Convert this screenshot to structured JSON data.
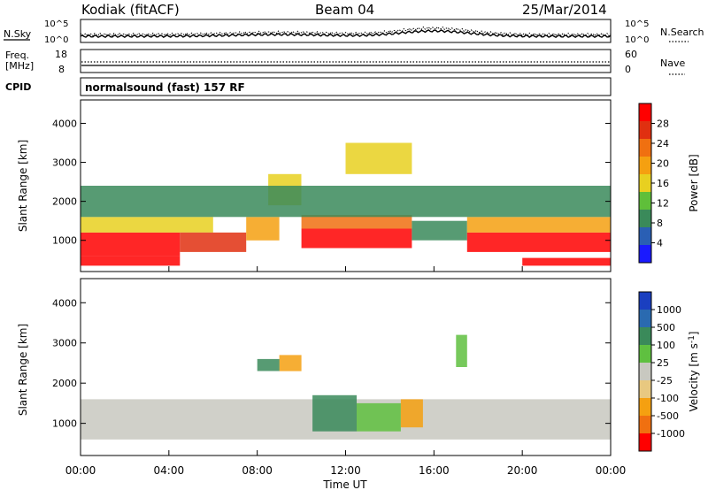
{
  "header": {
    "station": "Kodiak (fitACF)",
    "beam": "Beam 04",
    "date": "25/Mar/2014"
  },
  "strips": {
    "nsky_label": "N.Sky",
    "nsearch_label": "N.Search",
    "noise_ticks": [
      "10^5",
      "10^0"
    ],
    "freq_label_1": "Freq.",
    "freq_label_2": "[MHz]",
    "freq_ticks": [
      "18",
      "8"
    ],
    "nave_label": "Nave",
    "nave_ticks": [
      "60",
      "0"
    ],
    "cpid_label": "CPID",
    "cpid_value": "normalsound (fast) 157 RF"
  },
  "chart_data": [
    {
      "type": "heatmap",
      "name": "power",
      "ylabel": "Slant Range [km]",
      "xlabel": "",
      "ylim": [
        200,
        4600
      ],
      "yticks": [
        "1000",
        "2000",
        "3000",
        "4000"
      ],
      "colorbar": {
        "label": "Power [dB]",
        "ticks": [
          "4",
          "8",
          "12",
          "16",
          "20",
          "24",
          "28"
        ],
        "colors": [
          "#1a1aff",
          "#2a5fb4",
          "#3a8a5a",
          "#5fbf3a",
          "#e8d020",
          "#f5a010",
          "#f07010",
          "#e03010",
          "#ff0000"
        ]
      },
      "regions": [
        {
          "t0": 0,
          "t1": 4.5,
          "r0": 350,
          "r1": 600,
          "level": 8
        },
        {
          "t0": 0,
          "t1": 4.5,
          "r0": 600,
          "r1": 1200,
          "level": 8
        },
        {
          "t0": 0,
          "t1": 6,
          "r0": 1200,
          "r1": 1600,
          "level": 4
        },
        {
          "t0": 4.5,
          "t1": 7.5,
          "r0": 700,
          "r1": 1200,
          "level": 7
        },
        {
          "t0": 7.5,
          "t1": 9,
          "r0": 1000,
          "r1": 1600,
          "level": 5
        },
        {
          "t0": 8.5,
          "t1": 10,
          "r0": 1900,
          "r1": 2700,
          "level": 4
        },
        {
          "t0": 10,
          "t1": 15,
          "r0": 800,
          "r1": 1300,
          "level": 8
        },
        {
          "t0": 10,
          "t1": 15,
          "r0": 1300,
          "r1": 1650,
          "level": 6
        },
        {
          "t0": 12,
          "t1": 15,
          "r0": 2700,
          "r1": 3500,
          "level": 4
        },
        {
          "t0": 15,
          "t1": 17.5,
          "r0": 1000,
          "r1": 1500,
          "level": 2
        },
        {
          "t0": 17.5,
          "t1": 24,
          "r0": 700,
          "r1": 1200,
          "level": 8
        },
        {
          "t0": 17.5,
          "t1": 24,
          "r0": 1200,
          "r1": 1600,
          "level": 5
        },
        {
          "t0": 20,
          "t1": 24,
          "r0": 350,
          "r1": 550,
          "level": 8
        },
        {
          "t0": 0,
          "t1": 24,
          "r0": 1600,
          "r1": 2400,
          "level": 2
        }
      ]
    },
    {
      "type": "heatmap",
      "name": "velocity",
      "ylabel": "Slant Range [km]",
      "xlabel": "Time UT",
      "ylim": [
        200,
        4600
      ],
      "yticks": [
        "1000",
        "2000",
        "3000",
        "4000"
      ],
      "xticks": [
        "00:00",
        "04:00",
        "08:00",
        "12:00",
        "16:00",
        "20:00",
        "00:00"
      ],
      "colorbar": {
        "label": "Velocity [m s",
        "unit_sup": "-1",
        "unit_end": "]",
        "ticks": [
          "1000",
          "500",
          "100",
          "25",
          "-25",
          "-100",
          "-500",
          "-1000"
        ],
        "colors": [
          "#1a3fc0",
          "#2a6ab0",
          "#3a8a5a",
          "#5fc040",
          "#c8c8c0",
          "#e8c880",
          "#f5a010",
          "#f07010",
          "#ff0000"
        ]
      },
      "regions": [
        {
          "t0": 0,
          "t1": 24,
          "r0": 600,
          "r1": 1600,
          "level": 4
        },
        {
          "t0": 10.5,
          "t1": 12.5,
          "r0": 800,
          "r1": 1700,
          "level": 2
        },
        {
          "t0": 12.5,
          "t1": 14.5,
          "r0": 800,
          "r1": 1500,
          "level": 3
        },
        {
          "t0": 14.5,
          "t1": 15.5,
          "r0": 900,
          "r1": 1600,
          "level": 6
        },
        {
          "t0": 9,
          "t1": 10,
          "r0": 2300,
          "r1": 2700,
          "level": 6
        },
        {
          "t0": 8,
          "t1": 9,
          "r0": 2300,
          "r1": 2600,
          "level": 2
        },
        {
          "t0": 17,
          "t1": 17.5,
          "r0": 2400,
          "r1": 3200,
          "level": 3
        }
      ]
    }
  ]
}
